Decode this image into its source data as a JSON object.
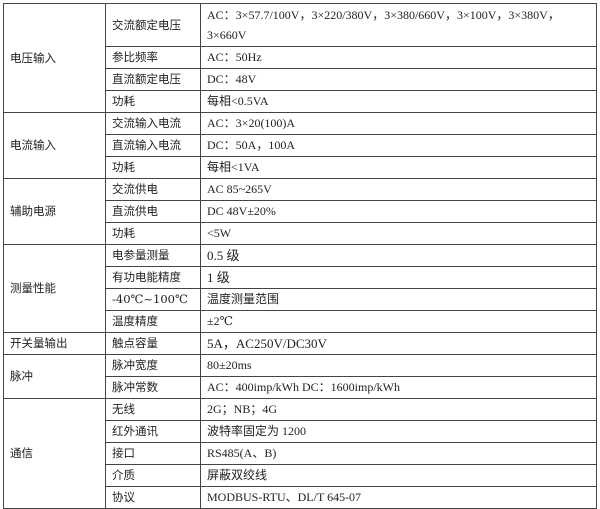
{
  "groups": [
    {
      "name": "电压输入",
      "rows": [
        {
          "param": "交流额定电压",
          "value": "AC：3×57.7/100V，3×220/380V，3×380/660V，3×100V，3×380V，3×660V"
        },
        {
          "param": "参比频率",
          "value": "AC：50Hz"
        },
        {
          "param": "直流额定电压",
          "value": "DC：48V"
        },
        {
          "param": "功耗",
          "value": "每相<0.5VA"
        }
      ]
    },
    {
      "name": "电流输入",
      "rows": [
        {
          "param": "交流输入电流",
          "value": "AC：3×20(100)A"
        },
        {
          "param": "直流输入电流",
          "value": "DC：50A，100A"
        },
        {
          "param": "功耗",
          "value": "每相<1VA"
        }
      ]
    },
    {
      "name": "辅助电源",
      "rows": [
        {
          "param": "交流供电",
          "value": "AC 85~265V"
        },
        {
          "param": "直流供电",
          "value": "DC 48V±20%"
        },
        {
          "param": "功耗",
          "value": "<5W"
        }
      ]
    },
    {
      "name": "测量性能",
      "rows": [
        {
          "param": "电参量测量",
          "value": "0.5 级"
        },
        {
          "param": "有功电能精度",
          "value": "1 级"
        },
        {
          "param": "-40℃~100℃",
          "value": "温度测量范围"
        },
        {
          "param": "温度精度",
          "value": "±2℃"
        }
      ]
    },
    {
      "name": "开关量输出",
      "rows": [
        {
          "param": "触点容量",
          "value": "5A，AC250V/DC30V"
        }
      ]
    },
    {
      "name": "脉冲",
      "rows": [
        {
          "param": "脉冲宽度",
          "value": "80±20ms"
        },
        {
          "param": "脉冲常数",
          "value": "AC：400imp/kWh  DC：1600imp/kWh"
        }
      ]
    },
    {
      "name": "通信",
      "rows": [
        {
          "param": "无线",
          "value": "2G；NB；4G"
        },
        {
          "param": "红外通讯",
          "value": "波特率固定为 1200"
        },
        {
          "param": "接口",
          "value": "RS485(A、B)"
        },
        {
          "param": "介质",
          "value": "屏蔽双绞线"
        },
        {
          "param": "协议",
          "value": "MODBUS-RTU、DL/T 645-07"
        }
      ]
    }
  ]
}
